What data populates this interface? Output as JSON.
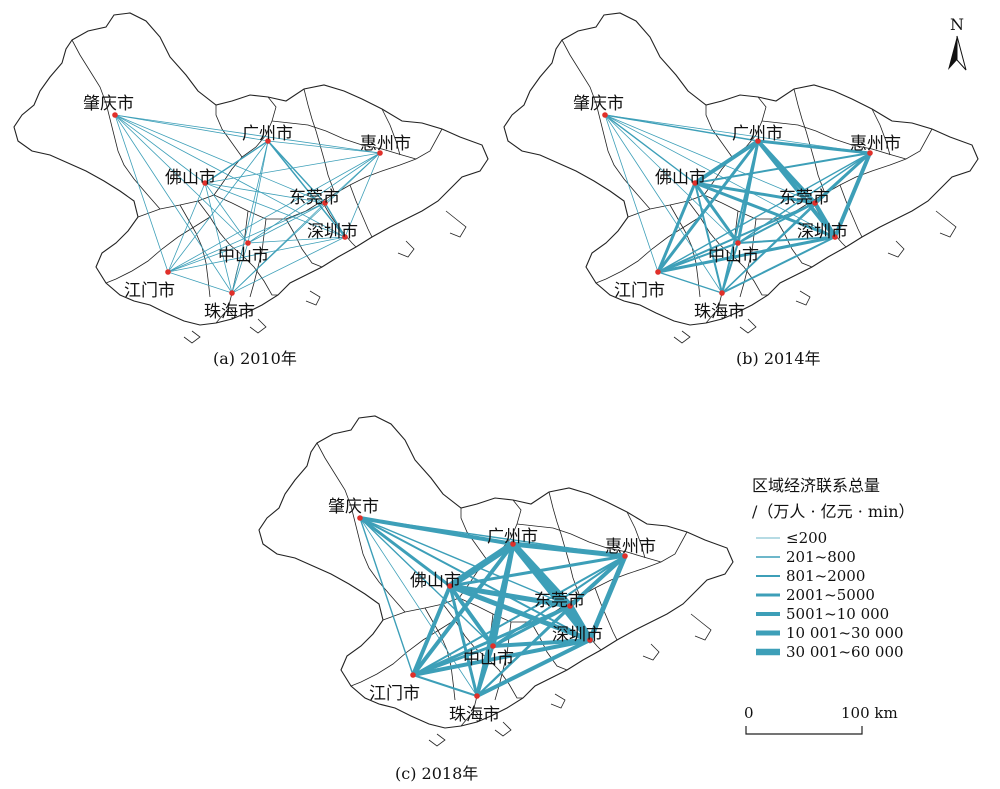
{
  "panels": [
    {
      "id": "a",
      "caption": "(a) 2010年",
      "cities": {
        "zhaoqing": "肇庆市",
        "guangzhou": "广州市",
        "huizhou": "惠州市",
        "foshan": "佛山市",
        "dongguan": "东莞市",
        "shenzhen": "深圳市",
        "zhongshan": "中山市",
        "jiangmen": "江门市",
        "zhuhai": "珠海市"
      },
      "links": [
        {
          "from": "zhaoqing",
          "to": "guangzhou",
          "class": 1
        },
        {
          "from": "zhaoqing",
          "to": "huizhou",
          "class": 1
        },
        {
          "from": "zhaoqing",
          "to": "foshan",
          "class": 1
        },
        {
          "from": "zhaoqing",
          "to": "dongguan",
          "class": 1
        },
        {
          "from": "zhaoqing",
          "to": "shenzhen",
          "class": 1
        },
        {
          "from": "zhaoqing",
          "to": "zhongshan",
          "class": 1
        },
        {
          "from": "zhaoqing",
          "to": "jiangmen",
          "class": 1
        },
        {
          "from": "zhaoqing",
          "to": "zhuhai",
          "class": 1
        },
        {
          "from": "guangzhou",
          "to": "huizhou",
          "class": 1
        },
        {
          "from": "guangzhou",
          "to": "foshan",
          "class": 2
        },
        {
          "from": "guangzhou",
          "to": "dongguan",
          "class": 2
        },
        {
          "from": "guangzhou",
          "to": "shenzhen",
          "class": 2
        },
        {
          "from": "guangzhou",
          "to": "zhongshan",
          "class": 1
        },
        {
          "from": "guangzhou",
          "to": "jiangmen",
          "class": 1
        },
        {
          "from": "guangzhou",
          "to": "zhuhai",
          "class": 1
        },
        {
          "from": "huizhou",
          "to": "foshan",
          "class": 1
        },
        {
          "from": "huizhou",
          "to": "dongguan",
          "class": 1
        },
        {
          "from": "huizhou",
          "to": "shenzhen",
          "class": 1
        },
        {
          "from": "huizhou",
          "to": "zhongshan",
          "class": 1
        },
        {
          "from": "huizhou",
          "to": "jiangmen",
          "class": 1
        },
        {
          "from": "huizhou",
          "to": "zhuhai",
          "class": 1
        },
        {
          "from": "foshan",
          "to": "dongguan",
          "class": 1
        },
        {
          "from": "foshan",
          "to": "shenzhen",
          "class": 1
        },
        {
          "from": "foshan",
          "to": "zhongshan",
          "class": 1
        },
        {
          "from": "foshan",
          "to": "jiangmen",
          "class": 1
        },
        {
          "from": "foshan",
          "to": "zhuhai",
          "class": 1
        },
        {
          "from": "dongguan",
          "to": "shenzhen",
          "class": 2
        },
        {
          "from": "dongguan",
          "to": "zhongshan",
          "class": 1
        },
        {
          "from": "dongguan",
          "to": "jiangmen",
          "class": 1
        },
        {
          "from": "dongguan",
          "to": "zhuhai",
          "class": 1
        },
        {
          "from": "shenzhen",
          "to": "zhongshan",
          "class": 1
        },
        {
          "from": "shenzhen",
          "to": "jiangmen",
          "class": 1
        },
        {
          "from": "shenzhen",
          "to": "zhuhai",
          "class": 1
        },
        {
          "from": "zhongshan",
          "to": "jiangmen",
          "class": 1
        },
        {
          "from": "zhongshan",
          "to": "zhuhai",
          "class": 1
        },
        {
          "from": "jiangmen",
          "to": "zhuhai",
          "class": 1
        }
      ]
    },
    {
      "id": "b",
      "caption": "(b) 2014年",
      "cities": {
        "zhaoqing": "肇庆市",
        "guangzhou": "广州市",
        "huizhou": "惠州市",
        "foshan": "佛山市",
        "dongguan": "东莞市",
        "shenzhen": "深圳市",
        "zhongshan": "中山市",
        "jiangmen": "江门市",
        "zhuhai": "珠海市"
      },
      "links": [
        {
          "from": "zhaoqing",
          "to": "guangzhou",
          "class": 2
        },
        {
          "from": "zhaoqing",
          "to": "huizhou",
          "class": 1
        },
        {
          "from": "zhaoqing",
          "to": "foshan",
          "class": 2
        },
        {
          "from": "zhaoqing",
          "to": "dongguan",
          "class": 1
        },
        {
          "from": "zhaoqing",
          "to": "shenzhen",
          "class": 1
        },
        {
          "from": "zhaoqing",
          "to": "zhongshan",
          "class": 1
        },
        {
          "from": "zhaoqing",
          "to": "jiangmen",
          "class": 1
        },
        {
          "from": "zhaoqing",
          "to": "zhuhai",
          "class": 1
        },
        {
          "from": "guangzhou",
          "to": "huizhou",
          "class": 4
        },
        {
          "from": "guangzhou",
          "to": "foshan",
          "class": 5
        },
        {
          "from": "guangzhou",
          "to": "dongguan",
          "class": 5
        },
        {
          "from": "guangzhou",
          "to": "shenzhen",
          "class": 5
        },
        {
          "from": "guangzhou",
          "to": "zhongshan",
          "class": 4
        },
        {
          "from": "guangzhou",
          "to": "jiangmen",
          "class": 4
        },
        {
          "from": "guangzhou",
          "to": "zhuhai",
          "class": 3
        },
        {
          "from": "huizhou",
          "to": "foshan",
          "class": 3
        },
        {
          "from": "huizhou",
          "to": "dongguan",
          "class": 4
        },
        {
          "from": "huizhou",
          "to": "shenzhen",
          "class": 5
        },
        {
          "from": "huizhou",
          "to": "zhongshan",
          "class": 2
        },
        {
          "from": "huizhou",
          "to": "jiangmen",
          "class": 2
        },
        {
          "from": "huizhou",
          "to": "zhuhai",
          "class": 2
        },
        {
          "from": "foshan",
          "to": "dongguan",
          "class": 4
        },
        {
          "from": "foshan",
          "to": "shenzhen",
          "class": 4
        },
        {
          "from": "foshan",
          "to": "zhongshan",
          "class": 4
        },
        {
          "from": "foshan",
          "to": "jiangmen",
          "class": 4
        },
        {
          "from": "foshan",
          "to": "zhuhai",
          "class": 3
        },
        {
          "from": "dongguan",
          "to": "shenzhen",
          "class": 5
        },
        {
          "from": "dongguan",
          "to": "zhongshan",
          "class": 3
        },
        {
          "from": "dongguan",
          "to": "jiangmen",
          "class": 3
        },
        {
          "from": "dongguan",
          "to": "zhuhai",
          "class": 2
        },
        {
          "from": "shenzhen",
          "to": "zhongshan",
          "class": 3
        },
        {
          "from": "shenzhen",
          "to": "jiangmen",
          "class": 4
        },
        {
          "from": "shenzhen",
          "to": "zhuhai",
          "class": 3
        },
        {
          "from": "zhongshan",
          "to": "jiangmen",
          "class": 3
        },
        {
          "from": "zhongshan",
          "to": "zhuhai",
          "class": 3
        },
        {
          "from": "jiangmen",
          "to": "zhuhai",
          "class": 2
        }
      ]
    },
    {
      "id": "c",
      "caption": "(c) 2018年",
      "cities": {
        "zhaoqing": "肇庆市",
        "guangzhou": "广州市",
        "huizhou": "惠州市",
        "foshan": "佛山市",
        "dongguan": "东莞市",
        "shenzhen": "深圳市",
        "zhongshan": "中山市",
        "jiangmen": "江门市",
        "zhuhai": "珠海市"
      },
      "links": [
        {
          "from": "zhaoqing",
          "to": "guangzhou",
          "class": 5
        },
        {
          "from": "zhaoqing",
          "to": "huizhou",
          "class": 2
        },
        {
          "from": "zhaoqing",
          "to": "foshan",
          "class": 4
        },
        {
          "from": "zhaoqing",
          "to": "dongguan",
          "class": 2
        },
        {
          "from": "zhaoqing",
          "to": "shenzhen",
          "class": 3
        },
        {
          "from": "zhaoqing",
          "to": "zhongshan",
          "class": 2
        },
        {
          "from": "zhaoqing",
          "to": "jiangmen",
          "class": 2
        },
        {
          "from": "zhaoqing",
          "to": "zhuhai",
          "class": 1
        },
        {
          "from": "guangzhou",
          "to": "huizhou",
          "class": 6
        },
        {
          "from": "guangzhou",
          "to": "foshan",
          "class": 7
        },
        {
          "from": "guangzhou",
          "to": "dongguan",
          "class": 7
        },
        {
          "from": "guangzhou",
          "to": "shenzhen",
          "class": 7
        },
        {
          "from": "guangzhou",
          "to": "zhongshan",
          "class": 6
        },
        {
          "from": "guangzhou",
          "to": "jiangmen",
          "class": 5
        },
        {
          "from": "guangzhou",
          "to": "zhuhai",
          "class": 5
        },
        {
          "from": "huizhou",
          "to": "foshan",
          "class": 4
        },
        {
          "from": "huizhou",
          "to": "dongguan",
          "class": 5
        },
        {
          "from": "huizhou",
          "to": "shenzhen",
          "class": 6
        },
        {
          "from": "huizhou",
          "to": "zhongshan",
          "class": 3
        },
        {
          "from": "huizhou",
          "to": "jiangmen",
          "class": 3
        },
        {
          "from": "huizhou",
          "to": "zhuhai",
          "class": 3
        },
        {
          "from": "foshan",
          "to": "dongguan",
          "class": 6
        },
        {
          "from": "foshan",
          "to": "shenzhen",
          "class": 6
        },
        {
          "from": "foshan",
          "to": "zhongshan",
          "class": 5
        },
        {
          "from": "foshan",
          "to": "jiangmen",
          "class": 5
        },
        {
          "from": "foshan",
          "to": "zhuhai",
          "class": 4
        },
        {
          "from": "dongguan",
          "to": "shenzhen",
          "class": 7
        },
        {
          "from": "dongguan",
          "to": "zhongshan",
          "class": 4
        },
        {
          "from": "dongguan",
          "to": "jiangmen",
          "class": 4
        },
        {
          "from": "dongguan",
          "to": "zhuhai",
          "class": 3
        },
        {
          "from": "shenzhen",
          "to": "zhongshan",
          "class": 5
        },
        {
          "from": "shenzhen",
          "to": "jiangmen",
          "class": 5
        },
        {
          "from": "shenzhen",
          "to": "zhuhai",
          "class": 5
        },
        {
          "from": "zhongshan",
          "to": "jiangmen",
          "class": 4
        },
        {
          "from": "zhongshan",
          "to": "zhuhai",
          "class": 4
        },
        {
          "from": "jiangmen",
          "to": "zhuhai",
          "class": 3
        }
      ]
    }
  ],
  "legend": {
    "title_line1": "区域经济联系总量",
    "title_line2": "/（万人 · 亿元 · min）",
    "classes": [
      {
        "label": "≤200"
      },
      {
        "label": "201~800"
      },
      {
        "label": "801~2000"
      },
      {
        "label": "2001~5000"
      },
      {
        "label": "5001~10 000"
      },
      {
        "label": "10 001~30 000"
      },
      {
        "label": "30 001~60 000"
      }
    ]
  },
  "scalebar": {
    "start_label": "0",
    "end_label": "100 km"
  },
  "north_arrow": {
    "label": "N",
    "icon": "north-arrow-icon"
  },
  "colors": {
    "link": "#3d9fb8",
    "city_point": "#e0302a",
    "boundary": "#222222",
    "text": "#111111"
  }
}
